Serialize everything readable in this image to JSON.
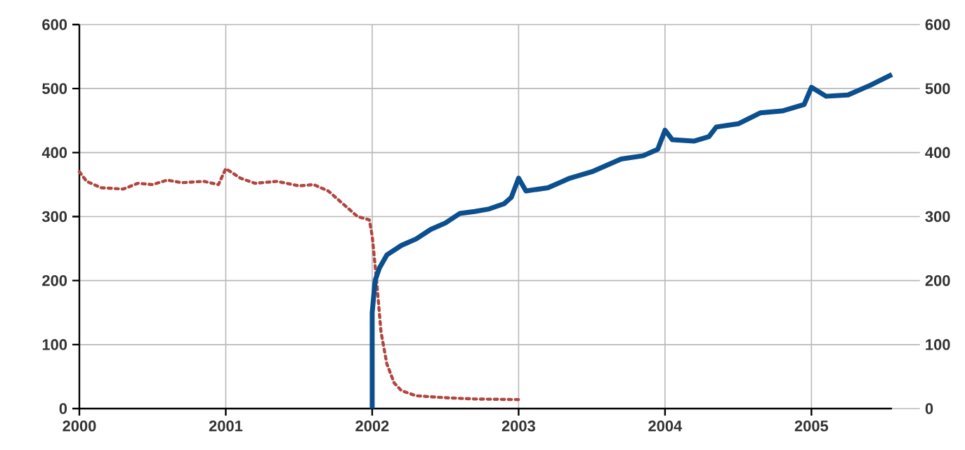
{
  "chart_data": {
    "type": "line",
    "xlim": [
      2000,
      2005.55
    ],
    "xticks": [
      2000,
      2001,
      2002,
      2003,
      2004,
      2005
    ],
    "ylim": [
      0,
      600
    ],
    "yticks": [
      0,
      100,
      200,
      300,
      400,
      500,
      600
    ],
    "y2lim": [
      0,
      600
    ],
    "y2ticks": [
      0,
      100,
      200,
      300,
      400,
      500,
      600
    ],
    "grid": true,
    "series": [
      {
        "color": "#b0463f",
        "line_style": "dotted",
        "x": [
          2000.0,
          2000.05,
          2000.15,
          2000.3,
          2000.4,
          2000.5,
          2000.6,
          2000.7,
          2000.85,
          2000.95,
          2001.0,
          2001.1,
          2001.2,
          2001.35,
          2001.5,
          2001.6,
          2001.7,
          2001.8,
          2001.9,
          2001.98,
          2002.0,
          2002.03,
          2002.06,
          2002.1,
          2002.15,
          2002.2,
          2002.3,
          2002.5,
          2002.7,
          2003.0
        ],
        "values": [
          370,
          355,
          345,
          343,
          352,
          350,
          357,
          353,
          355,
          350,
          375,
          360,
          352,
          355,
          348,
          350,
          340,
          320,
          300,
          295,
          270,
          200,
          120,
          70,
          40,
          28,
          20,
          17,
          15,
          14
        ]
      },
      {
        "color": "#0b4f8e",
        "line_style": "solid",
        "x": [
          2002.0,
          2002.0,
          2002.02,
          2002.05,
          2002.1,
          2002.2,
          2002.3,
          2002.4,
          2002.5,
          2002.6,
          2002.7,
          2002.8,
          2002.9,
          2002.95,
          2003.0,
          2003.05,
          2003.2,
          2003.35,
          2003.5,
          2003.7,
          2003.85,
          2003.95,
          2004.0,
          2004.05,
          2004.2,
          2004.3,
          2004.35,
          2004.5,
          2004.65,
          2004.8,
          2004.95,
          2005.0,
          2005.1,
          2005.25,
          2005.4,
          2005.55
        ],
        "values": [
          0,
          150,
          200,
          220,
          240,
          255,
          265,
          280,
          290,
          305,
          308,
          312,
          320,
          330,
          360,
          340,
          345,
          360,
          370,
          390,
          395,
          405,
          435,
          420,
          418,
          425,
          440,
          445,
          462,
          465,
          475,
          502,
          488,
          490,
          505,
          522
        ]
      }
    ]
  }
}
